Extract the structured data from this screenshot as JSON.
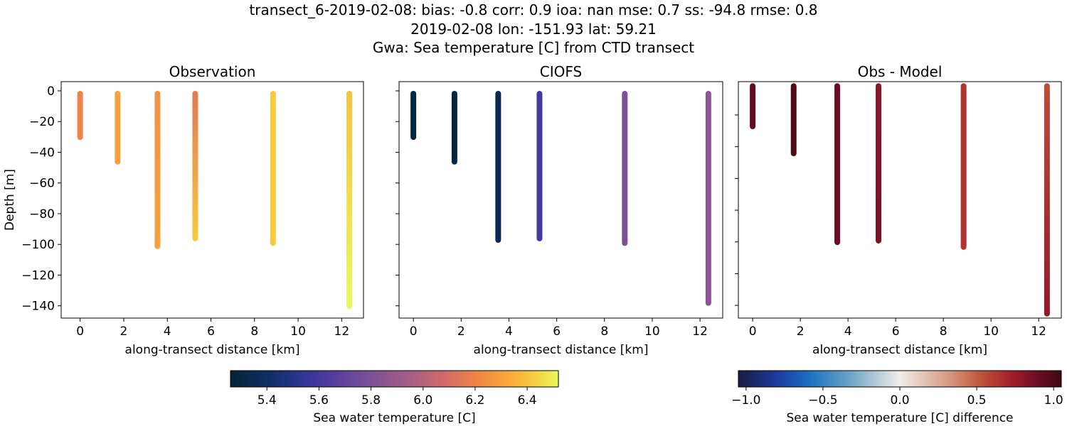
{
  "title_lines": [
    "transect_6-2019-02-08: bias: -0.8  corr: 0.9  ioa: nan  mse: 0.7  ss: -94.8  rmse: 0.8",
    "2019-02-08 lon: -151.93 lat: 59.21",
    "Gwa: Sea temperature [C] from CTD transect"
  ],
  "chart_data": [
    {
      "type": "line",
      "title": "Observation",
      "xlabel": "along-transect distance [km]",
      "ylabel": "Depth [m]",
      "xlim": [
        -0.87,
        13.0
      ],
      "ylim": [
        -148,
        6
      ],
      "xticks": [
        0,
        2,
        4,
        6,
        8,
        10,
        12
      ],
      "yticks": [
        0,
        -20,
        -40,
        -60,
        -80,
        -100,
        -120,
        -140
      ],
      "show_ytick_labels": true,
      "colormap": "thermal",
      "clim": [
        5.26,
        6.52
      ],
      "stations": [
        {
          "x": 0,
          "bottom": -32,
          "value_top": 6.2,
          "value_bottom": 6.2
        },
        {
          "x": 1.72,
          "bottom": -48,
          "value_top": 6.3,
          "value_bottom": 6.3
        },
        {
          "x": 3.55,
          "bottom": -103,
          "value_top": 6.25,
          "value_bottom": 6.3
        },
        {
          "x": 5.28,
          "bottom": -98,
          "value_top": 6.15,
          "value_bottom": 6.42
        },
        {
          "x": 8.85,
          "bottom": -101,
          "value_top": 6.42,
          "value_bottom": 6.42
        },
        {
          "x": 12.35,
          "bottom": -142,
          "value_top": 6.4,
          "value_bottom": 6.52
        }
      ]
    },
    {
      "type": "line",
      "title": "CIOFS",
      "xlabel": "along-transect distance [km]",
      "ylabel": "",
      "xlim": [
        -0.6,
        12.95
      ],
      "ylim": [
        -148,
        6
      ],
      "xticks": [
        0,
        2,
        4,
        6,
        8,
        10,
        12
      ],
      "yticks": [
        0,
        -20,
        -40,
        -60,
        -80,
        -100,
        -120,
        -140
      ],
      "show_ytick_labels": false,
      "colormap": "thermal",
      "clim": [
        5.26,
        6.52
      ],
      "stations": [
        {
          "x": 0,
          "bottom": -32,
          "value_top": 5.28,
          "value_bottom": 5.28
        },
        {
          "x": 1.72,
          "bottom": -48,
          "value_top": 5.3,
          "value_bottom": 5.3
        },
        {
          "x": 3.55,
          "bottom": -99,
          "value_top": 5.35,
          "value_bottom": 5.35
        },
        {
          "x": 5.28,
          "bottom": -98,
          "value_top": 5.6,
          "value_bottom": 5.6
        },
        {
          "x": 8.85,
          "bottom": -101,
          "value_top": 5.8,
          "value_bottom": 5.8
        },
        {
          "x": 12.35,
          "bottom": -140,
          "value_top": 5.85,
          "value_bottom": 5.85
        }
      ]
    },
    {
      "type": "line",
      "title": "Obs - Model",
      "xlabel": "along-transect distance [km]",
      "ylabel": "",
      "xlim": [
        -0.6,
        12.95
      ],
      "ylim": [
        -148,
        1
      ],
      "xticks": [
        0,
        2,
        4,
        6,
        8,
        10,
        12
      ],
      "yticks": [
        -20,
        -40,
        -60,
        -80,
        -100,
        -120,
        -140
      ],
      "show_ytick_labels": false,
      "colormap": "balance",
      "clim": [
        -1.05,
        1.05
      ],
      "stations": [
        {
          "x": 0,
          "bottom": -29,
          "value_top": 0.93,
          "value_bottom": 0.93
        },
        {
          "x": 1.72,
          "bottom": -46,
          "value_top": 0.98,
          "value_bottom": 0.98
        },
        {
          "x": 3.55,
          "bottom": -102,
          "value_top": 0.9,
          "value_bottom": 0.9
        },
        {
          "x": 5.28,
          "bottom": -101,
          "value_top": 0.8,
          "value_bottom": 0.85
        },
        {
          "x": 8.85,
          "bottom": -105,
          "value_top": 0.65,
          "value_bottom": 0.65
        },
        {
          "x": 12.35,
          "bottom": -147,
          "value_top": 0.55,
          "value_bottom": 0.78
        }
      ]
    }
  ],
  "colorbars": [
    {
      "label": "Sea water temperature [C]",
      "colormap": "thermal",
      "range": [
        5.26,
        6.52
      ],
      "ticks": [
        "5.4",
        "5.6",
        "5.8",
        "6.0",
        "6.2",
        "6.4"
      ]
    },
    {
      "label": "Sea water temperature [C] difference",
      "colormap": "balance",
      "range": [
        -1.05,
        1.05
      ],
      "ticks": [
        "−1.0",
        "−0.5",
        "0.0",
        "0.5",
        "1.0"
      ]
    }
  ]
}
